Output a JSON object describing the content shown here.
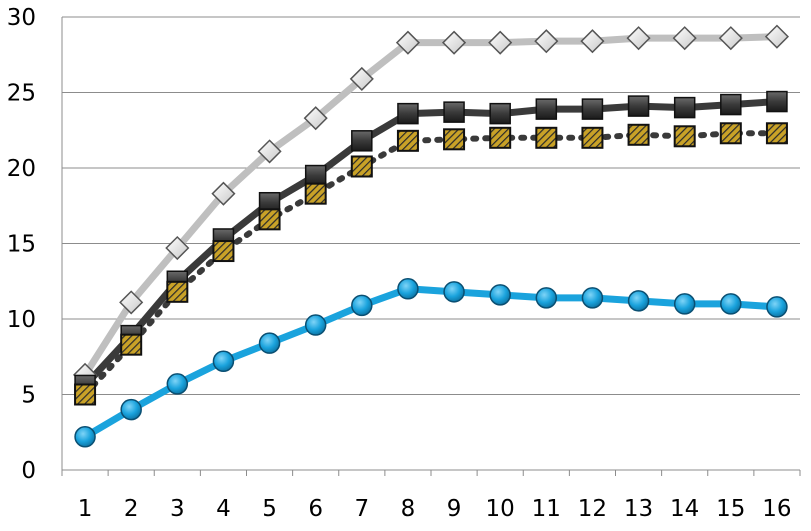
{
  "chart_data": {
    "type": "line",
    "title": "",
    "xlabel": "",
    "ylabel": "",
    "x": [
      1,
      2,
      3,
      4,
      5,
      6,
      7,
      8,
      9,
      10,
      11,
      12,
      13,
      14,
      15,
      16
    ],
    "ylim": [
      0,
      30
    ],
    "yticks": [
      0,
      5,
      10,
      15,
      20,
      25,
      30
    ],
    "grid": "horizontal",
    "legend": "none",
    "series": [
      {
        "values": [
          6.3,
          11.1,
          14.7,
          18.3,
          21.1,
          23.3,
          25.9,
          28.3,
          28.3,
          28.3,
          28.4,
          28.4,
          28.6,
          28.6,
          28.6,
          28.7
        ],
        "line_color": "#bfbfbf",
        "line_style": "solid",
        "marker": "diamond",
        "marker_color": "#e8e8e8"
      },
      {
        "values": [
          5.6,
          8.9,
          12.5,
          15.3,
          17.7,
          19.5,
          21.8,
          23.6,
          23.7,
          23.6,
          23.9,
          23.9,
          24.1,
          24.0,
          24.2,
          24.4
        ],
        "line_color": "#3a3a3a",
        "line_style": "solid",
        "marker": "square",
        "marker_color": "#404040"
      },
      {
        "values": [
          5.0,
          8.3,
          11.8,
          14.5,
          16.6,
          18.3,
          20.1,
          21.8,
          21.9,
          22.0,
          22.0,
          22.0,
          22.2,
          22.1,
          22.3,
          22.3
        ],
        "line_color": "#3a3a3a",
        "line_style": "dotted",
        "marker": "square-hatched",
        "marker_color": "#c9a227"
      },
      {
        "values": [
          2.2,
          4.0,
          5.7,
          7.2,
          8.4,
          9.6,
          10.9,
          12.0,
          11.8,
          11.6,
          11.4,
          11.4,
          11.2,
          11.0,
          11.0,
          10.8
        ],
        "line_color": "#1aa3dd",
        "line_style": "solid",
        "marker": "circle",
        "marker_color": "#1aa3dd"
      }
    ]
  }
}
